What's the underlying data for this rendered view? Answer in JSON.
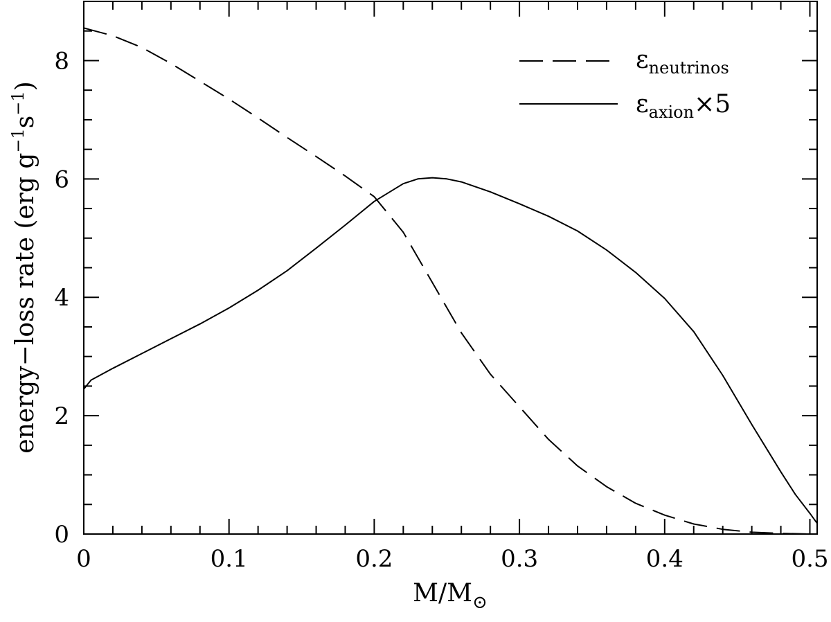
{
  "chart_data": {
    "type": "line",
    "title": "",
    "xlabel": "M/M",
    "xlabel_subscript_symbol": "⊙",
    "ylabel": "energy−loss rate (erg g",
    "ylabel_exp1": "−1",
    "ylabel_mid": "s",
    "ylabel_exp2": "−1",
    "ylabel_end": ")",
    "xlim": [
      0,
      0.505
    ],
    "ylim": [
      0,
      9
    ],
    "x_ticks": [
      "0",
      "0.1",
      "0.2",
      "0.3",
      "0.4",
      "0.5"
    ],
    "y_ticks": [
      "0",
      "2",
      "4",
      "6",
      "8"
    ],
    "grid": false,
    "legend_position": "top-right",
    "series": [
      {
        "name": "ε",
        "name_subscript": "neutrinos",
        "name_suffix": "",
        "style": "dashed",
        "x": [
          0,
          0.02,
          0.04,
          0.06,
          0.08,
          0.1,
          0.12,
          0.14,
          0.16,
          0.18,
          0.2,
          0.22,
          0.24,
          0.26,
          0.28,
          0.3,
          0.32,
          0.34,
          0.36,
          0.38,
          0.4,
          0.42,
          0.44,
          0.46,
          0.48,
          0.5,
          0.505
        ],
        "y": [
          8.55,
          8.42,
          8.22,
          7.95,
          7.65,
          7.35,
          7.03,
          6.7,
          6.38,
          6.05,
          5.7,
          5.1,
          4.25,
          3.4,
          2.7,
          2.15,
          1.6,
          1.15,
          0.8,
          0.52,
          0.32,
          0.17,
          0.08,
          0.03,
          0.01,
          0.0,
          0.0
        ]
      },
      {
        "name": "ε",
        "name_subscript": "axion",
        "name_suffix": "×5",
        "style": "solid",
        "x": [
          0,
          0.005,
          0.02,
          0.04,
          0.06,
          0.08,
          0.1,
          0.12,
          0.14,
          0.16,
          0.18,
          0.2,
          0.22,
          0.23,
          0.24,
          0.25,
          0.26,
          0.28,
          0.3,
          0.32,
          0.34,
          0.36,
          0.38,
          0.4,
          0.42,
          0.44,
          0.46,
          0.48,
          0.49,
          0.5,
          0.505
        ],
        "y": [
          2.45,
          2.6,
          2.8,
          3.05,
          3.3,
          3.55,
          3.82,
          4.12,
          4.45,
          4.83,
          5.22,
          5.62,
          5.92,
          6.0,
          6.02,
          6.0,
          5.95,
          5.78,
          5.58,
          5.37,
          5.12,
          4.8,
          4.42,
          3.98,
          3.42,
          2.68,
          1.85,
          1.05,
          0.67,
          0.35,
          0.18
        ]
      }
    ]
  }
}
